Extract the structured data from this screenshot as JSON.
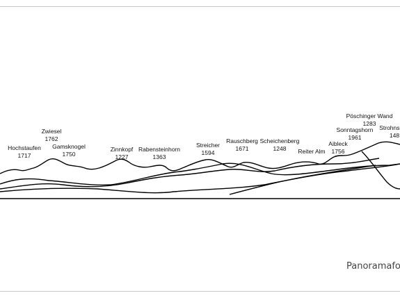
{
  "footer": {
    "text": "Panoramafo"
  },
  "peaks": [
    {
      "name": "Hochstaufen",
      "elevation": "1717"
    },
    {
      "name": "Zwiesel",
      "elevation": "1762"
    },
    {
      "name": "Gamsknogel",
      "elevation": "1750"
    },
    {
      "name": "Zinnkopf",
      "elevation": "1227"
    },
    {
      "name": "Rabensteinhorn",
      "elevation": "1363"
    },
    {
      "name": "Streicher",
      "elevation": "1594"
    },
    {
      "name": "Rauschberg",
      "elevation": "1671"
    },
    {
      "name": "Scheichenberg",
      "elevation": "1248"
    },
    {
      "name": "Reiter Alm",
      "elevation": ""
    },
    {
      "name": "Aibleck",
      "elevation": "1756"
    },
    {
      "name": "Sonntagshorn",
      "elevation": "1961"
    },
    {
      "name": "Pöschinger Wand",
      "elevation": "1283"
    },
    {
      "name": "Strohnsc",
      "elevation": "148"
    }
  ]
}
